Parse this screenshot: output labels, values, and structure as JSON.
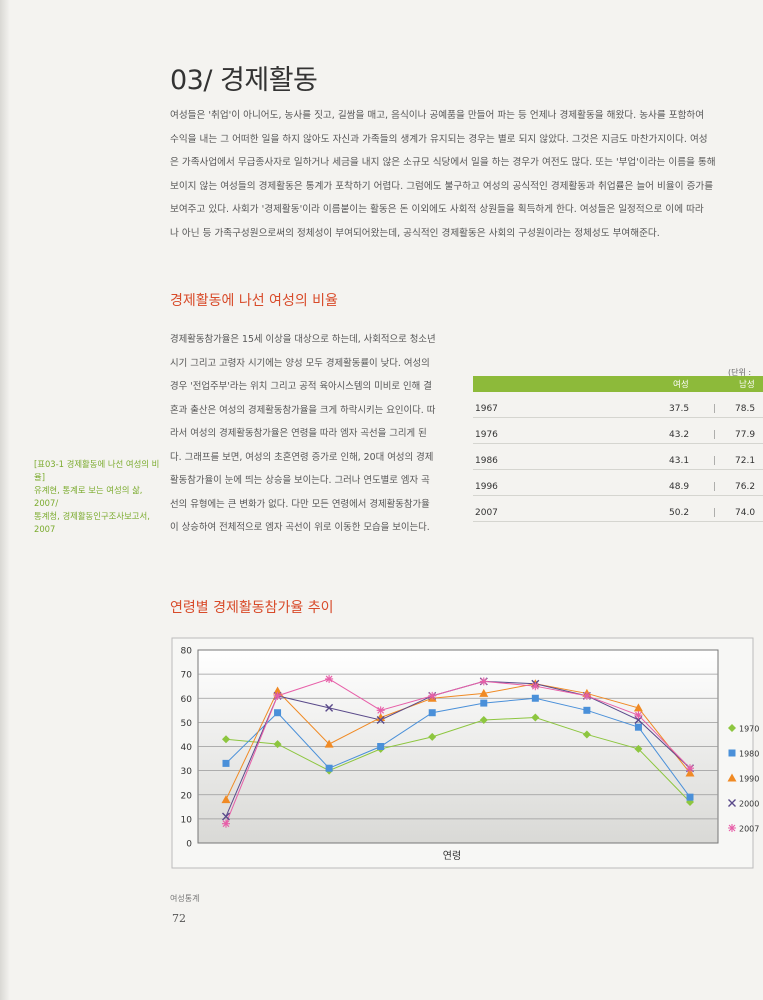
{
  "section": {
    "title": "03/ 경제활동",
    "intro": [
      "여성들은 '취업'이 아니어도, 농사를 짓고, 길쌈을 매고, 음식이나 공예품을 만들어 파는 등 언제나 경제활동을 해왔다. 농사를 포함하여",
      "수익을 내는 그 어떠한 일을 하지 않아도 자신과 가족들의 생계가 유지되는 경우는 별로 되지 않았다. 그것은 지금도 마찬가지이다. 여성",
      "은 가족사업에서 무급종사자로 일하거나 세금을 내지 않은 소규모 식당에서 일을 하는 경우가 여전도 많다. 또는 '부업'이라는 이름을 통해",
      "보이지 않는 여성들의 경제활동은 통계가 포착하기 어렵다. 그럼에도 불구하고 여성의 공식적인 경제활동과 취업률은 늘어 비율이 증가를",
      "보여주고 있다. 사회가 '경제활동'이라 이름붙이는 활동은 돈 이외에도 사회적 상원들을 획득하게 한다. 여성들은 일정적으로 이에 따라",
      "나 아닌 등 가족구성원으로써의 정체성이 부여되어왔는데, 공식적인 경제활동은 사회의 구성원이라는 정체성도 부여해준다."
    ]
  },
  "heading1": "경제활동에 나선 여성의 비율",
  "body": [
    "경제활동참가율은 15세 이상을 대상으로 하는데, 사회적으로 청소년",
    "시기 그리고 고령자 시기에는 양성 모두 경제활동률이 낮다. 여성의",
    "경우 '전업주부'라는 위치 그리고 공적 육아시스템의 미비로 인해 결",
    "혼과 출산은 여성의 경제활동참가율을 크게 하락시키는 요인이다. 따",
    "라서 여성의 경제활동참가율은 연령을 따라 엠자 곡선을 그리게 된",
    "다. 그래프를 보면, 여성의 초혼연령 증가로 인해, 20대 여성의 경제",
    "활동참가율이 눈에 띄는 상승을 보이는다. 그러나 연도별로 엠자 곡",
    "선의 유형에는 큰 변화가 없다. 다만 모든 연령에서 경제활동참가율",
    "이 상승하여 전체적으로 엠자 곡선이 위로 이동한 모습을 보이는다."
  ],
  "sidenote": [
    "[표03-1 경제활동에 나선 여성의 비율]",
    "유계현, 통계로 보는 여성의 삶, 2007/",
    "통계청, 경제활동인구조사보고서,",
    "2007"
  ],
  "table": {
    "unit": "(단위 :",
    "headers": [
      "여성",
      "남성"
    ],
    "rows": [
      {
        "year": "1967",
        "female": "37.5",
        "male": "78.5"
      },
      {
        "year": "1976",
        "female": "43.2",
        "male": "77.9"
      },
      {
        "year": "1986",
        "female": "43.1",
        "male": "72.1"
      },
      {
        "year": "1996",
        "female": "48.9",
        "male": "76.2"
      },
      {
        "year": "2007",
        "female": "50.2",
        "male": "74.0"
      }
    ]
  },
  "heading2": "연령별 경제활동참가율 추이",
  "chart_data": {
    "type": "line",
    "title": "",
    "xlabel": "연령",
    "ylabel": "",
    "ylim": [
      0,
      80
    ],
    "yticks": [
      "0",
      "10",
      "20",
      "30",
      "40",
      "50",
      "60",
      "70",
      "80"
    ],
    "x": [
      1,
      2,
      3,
      4,
      5,
      6,
      7,
      8,
      9,
      10
    ],
    "legend_position": "right",
    "series": [
      {
        "name": "1970",
        "color": "#8dc63f",
        "marker": "diamond",
        "values": [
          43,
          41,
          30,
          39,
          44,
          51,
          52,
          45,
          39,
          17
        ]
      },
      {
        "name": "1980",
        "color": "#4a90d9",
        "marker": "square",
        "values": [
          33,
          54,
          31,
          40,
          54,
          58,
          60,
          55,
          48,
          19
        ]
      },
      {
        "name": "1990",
        "color": "#f08a24",
        "marker": "triangle",
        "values": [
          18,
          63,
          41,
          52,
          60,
          62,
          66,
          62,
          56,
          29
        ]
      },
      {
        "name": "2000",
        "color": "#5a4a8a",
        "marker": "x",
        "values": [
          11,
          61,
          56,
          51,
          61,
          67,
          66,
          61,
          51,
          31
        ]
      },
      {
        "name": "2007",
        "color": "#e75fa8",
        "marker": "star",
        "values": [
          8,
          61,
          68,
          55,
          61,
          67,
          65,
          61,
          53,
          31
        ]
      }
    ]
  },
  "footer": "여성통계",
  "page_number": "72"
}
